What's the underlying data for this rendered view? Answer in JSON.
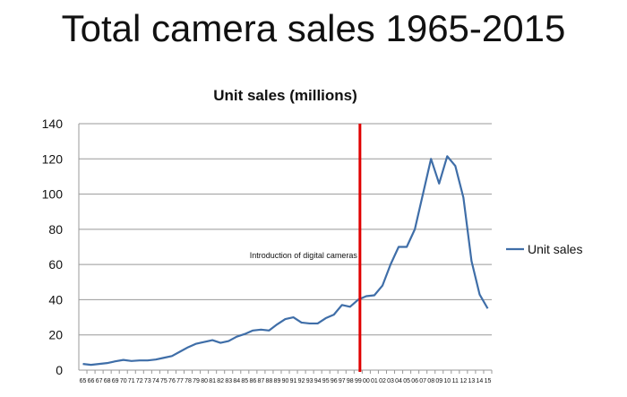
{
  "slide_title": "Total camera sales 1965-2015",
  "chart_data": {
    "type": "line",
    "title": "Unit sales (millions)",
    "xlabel": "",
    "ylabel": "",
    "ylim": [
      0,
      140
    ],
    "yticks": [
      0,
      20,
      40,
      60,
      80,
      100,
      120,
      140
    ],
    "grid": true,
    "legend_position": "right",
    "categories": [
      "65",
      "66",
      "67",
      "68",
      "69",
      "70",
      "71",
      "72",
      "73",
      "74",
      "75",
      "76",
      "77",
      "78",
      "79",
      "80",
      "81",
      "82",
      "83",
      "84",
      "85",
      "86",
      "87",
      "88",
      "89",
      "90",
      "91",
      "92",
      "93",
      "94",
      "95",
      "96",
      "97",
      "98",
      "99",
      "00",
      "01",
      "02",
      "03",
      "04",
      "05",
      "06",
      "07",
      "08",
      "09",
      "10",
      "11",
      "12",
      "13",
      "14",
      "15"
    ],
    "series": [
      {
        "name": "Unit sales",
        "color": "#3f6ea8",
        "values": [
          3.5,
          3,
          3.5,
          4,
          5,
          5.8,
          5.2,
          5.5,
          5.5,
          6,
          7,
          8,
          10.5,
          13,
          15,
          16,
          17,
          15.5,
          16.5,
          19,
          20.5,
          22.5,
          23,
          22.5,
          26,
          29,
          30,
          27,
          26.5,
          26.5,
          29.5,
          31.5,
          37,
          36,
          40,
          42,
          42.5,
          48,
          60,
          70,
          70,
          80,
          100,
          120,
          106,
          121.5,
          116,
          98,
          62,
          43,
          35
        ]
      }
    ],
    "annotations": [
      {
        "text": "Introduction of digital cameras",
        "at_category": "99",
        "line_color": "#e00000"
      }
    ]
  }
}
